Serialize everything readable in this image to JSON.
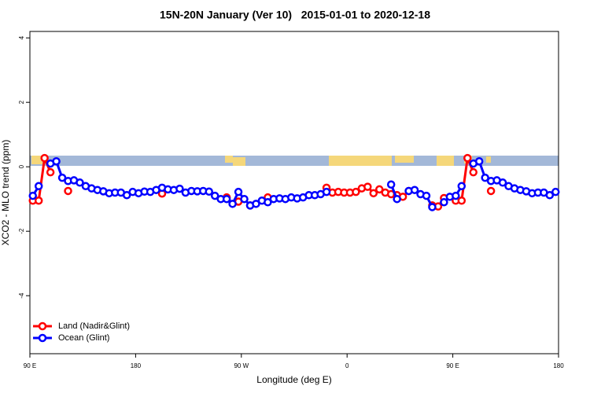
{
  "chart_data": {
    "type": "line",
    "title": "15N-20N January (Ver 10)   2015-01-01 to 2020-12-18",
    "x_label": "Longitude (deg E)",
    "y_label": "XCO2 - MLO trend (ppm)",
    "xlim": [
      90,
      540
    ],
    "xticks": [
      {
        "value": 90,
        "label": "90 E"
      },
      180,
      {
        "value": 270,
        "label": "90 W"
      },
      {
        "value": 360,
        "label": "0"
      },
      {
        "value": 450,
        "label": "90 E"
      },
      {
        "value": 540,
        "label": "180"
      }
    ],
    "ylim": [
      -5.8,
      4.2
    ],
    "yticks": [
      -4,
      -2,
      0,
      2,
      4
    ],
    "legend": "bottom-left",
    "x": [
      92.5,
      97.5,
      102.5,
      107.5,
      112.5,
      117.5,
      122.5,
      127.5,
      132.5,
      137.5,
      142.5,
      147.5,
      152.5,
      157.5,
      162.5,
      167.5,
      172.5,
      177.5,
      182.5,
      187.5,
      192.5,
      197.5,
      202.5,
      207.5,
      212.5,
      217.5,
      222.5,
      227.5,
      232.5,
      237.5,
      242.5,
      247.5,
      252.5,
      257.5,
      262.5,
      267.5,
      272.5,
      277.5,
      282.5,
      287.5,
      292.5,
      297.5,
      302.5,
      307.5,
      312.5,
      317.5,
      322.5,
      327.5,
      332.5,
      337.5,
      342.5,
      347.5,
      352.5,
      357.5,
      362.5,
      367.5,
      372.5,
      377.5,
      382.5,
      387.5,
      392.5,
      397.5,
      402.5,
      407.5,
      412.5,
      417.5,
      422.5,
      427.5,
      432.5,
      437.5,
      442.5,
      447.5,
      452.5,
      457.5,
      462.5,
      467.5,
      472.5,
      477.5,
      482.5,
      487.5,
      492.5,
      497.5,
      502.5,
      507.5,
      512.5,
      517.5,
      522.5,
      527.5,
      532.5,
      537.5
    ],
    "series": [
      {
        "name": "Land (Nadir&Glint)",
        "color": "#ff0000",
        "values": [
          -1.05,
          -1.05,
          0.27,
          -0.17,
          null,
          null,
          -0.75,
          null,
          null,
          null,
          null,
          null,
          null,
          null,
          null,
          null,
          null,
          null,
          null,
          null,
          null,
          null,
          -0.83,
          null,
          null,
          null,
          null,
          null,
          null,
          null,
          null,
          null,
          null,
          -0.95,
          null,
          -1.08,
          null,
          -1.2,
          null,
          null,
          -0.95,
          null,
          null,
          null,
          null,
          null,
          null,
          null,
          null,
          null,
          -0.65,
          -0.8,
          -0.78,
          -0.8,
          -0.8,
          -0.78,
          -0.67,
          -0.62,
          -0.82,
          -0.7,
          -0.8,
          -0.85,
          -0.88,
          -0.93,
          -0.75,
          null,
          null,
          null,
          -1.2,
          -1.23,
          -0.97,
          null,
          -1.05,
          -1.05,
          0.27,
          -0.17,
          null,
          null,
          -0.75,
          null,
          null,
          null,
          null,
          null,
          null,
          null,
          null,
          null,
          null,
          null
        ]
      },
      {
        "name": "Ocean (Glint)",
        "color": "#0000ff",
        "values": [
          -0.9,
          -0.6,
          null,
          0.1,
          0.17,
          -0.34,
          -0.44,
          -0.42,
          -0.49,
          -0.6,
          -0.67,
          -0.72,
          -0.76,
          -0.82,
          -0.8,
          -0.8,
          -0.88,
          -0.78,
          -0.82,
          -0.77,
          -0.78,
          -0.72,
          -0.65,
          -0.7,
          -0.72,
          -0.68,
          -0.8,
          -0.75,
          -0.76,
          -0.75,
          -0.77,
          -0.9,
          -1.0,
          -1.0,
          -1.15,
          -0.78,
          -1.0,
          -1.2,
          -1.15,
          -1.05,
          -1.1,
          -1.0,
          -0.98,
          -1.0,
          -0.95,
          -0.98,
          -0.95,
          -0.88,
          -0.88,
          -0.85,
          -0.78,
          null,
          null,
          null,
          null,
          null,
          null,
          null,
          null,
          null,
          null,
          -0.55,
          -1.0,
          null,
          -0.75,
          -0.72,
          -0.85,
          -0.9,
          -1.25,
          null,
          -1.1,
          -0.93,
          -0.9,
          -0.6,
          null,
          0.1,
          0.17,
          -0.34,
          -0.44,
          -0.42,
          -0.49,
          -0.6,
          -0.67,
          -0.72,
          -0.76,
          -0.82,
          -0.8,
          -0.8,
          -0.88,
          -0.78
        ]
      }
    ]
  }
}
